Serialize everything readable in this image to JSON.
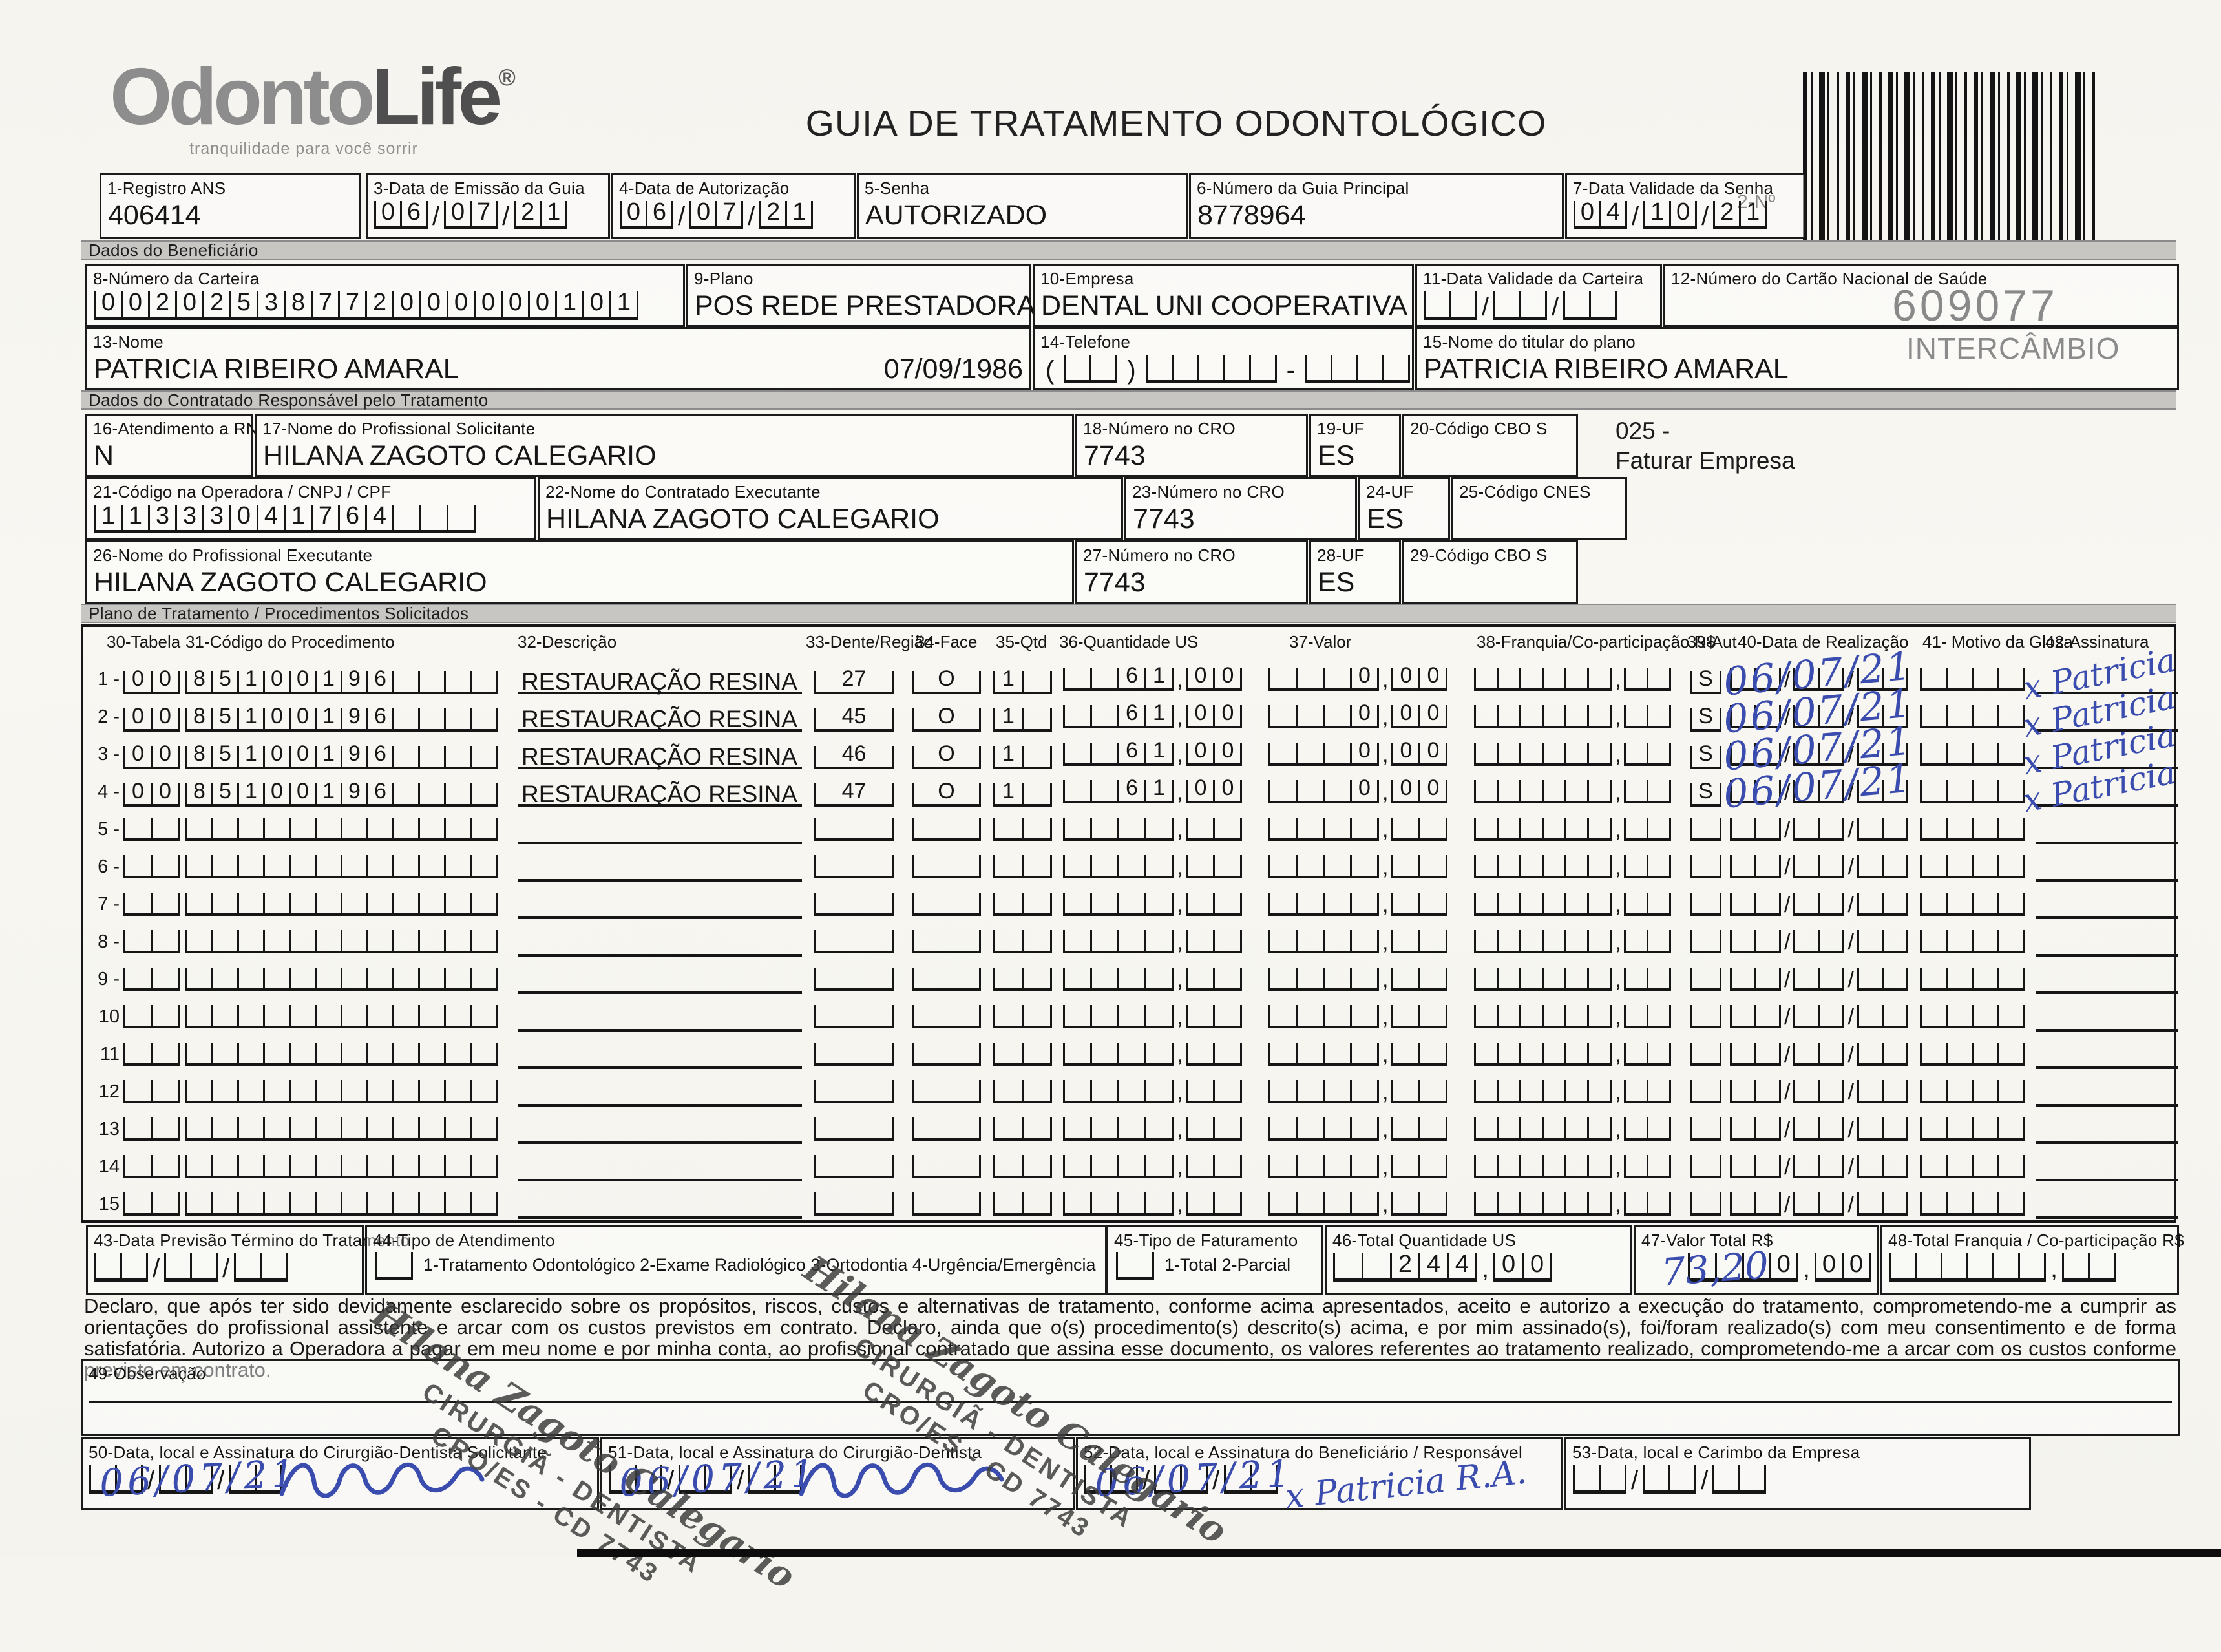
{
  "page": {
    "logo": {
      "odonto": "Odonto",
      "life": "Life",
      "reg": "®",
      "tagline": "tranquilidade para você sorrir"
    },
    "title": "GUIA DE TRATAMENTO ODONTOLÓGICO",
    "barcode_label": "2-Nº",
    "guide_number": "609077",
    "guide_type": "INTERCÂMBIO",
    "ink_color": "#3a4cae"
  },
  "header_fields": {
    "registro_ans": {
      "label": "1-Registro ANS",
      "value": "406414"
    },
    "emissao": {
      "label": "3-Data de Emissão da Guia",
      "value": "060721"
    },
    "autorizacao": {
      "label": "4-Data de Autorização",
      "value": "060721"
    },
    "senha": {
      "label": "5-Senha",
      "value": "AUTORIZADO"
    },
    "guia_principal": {
      "label": "6-Número da Guia Principal",
      "value": "8778964"
    },
    "validade_senha": {
      "label": "7-Data Validade da Senha",
      "value": "041021"
    }
  },
  "section_bars": {
    "beneficiario": "Dados do Beneficiário",
    "contratado": "Dados do Contratado Responsável pelo Tratamento",
    "plano": "Plano de Tratamento / Procedimentos Solicitados"
  },
  "beneficiario": {
    "carteira": {
      "label": "8-Número da Carteira",
      "value": "00202538772000000101"
    },
    "plano": {
      "label": "9-Plano",
      "value": "POS REDE PRESTADORA"
    },
    "empresa": {
      "label": "10-Empresa",
      "value": "DENTAL UNI  COOPERATIVA"
    },
    "validade_carteira": {
      "label": "11-Data Validade da Carteira",
      "value": "      "
    },
    "cartao_nacional": {
      "label": "12-Número do Cartão Nacional de Saúde",
      "value": ""
    },
    "nome": {
      "label": "13-Nome",
      "value": "PATRICIA RIBEIRO AMARAL",
      "nascimento": "07/09/1986"
    },
    "telefone": {
      "label": "14-Telefone",
      "open": "(",
      "close": ")",
      "dash": "-",
      "ddd": "  ",
      "parte1": "     ",
      "parte2": "    "
    },
    "titular": {
      "label": "15-Nome do titular do plano",
      "value": "PATRICIA RIBEIRO AMARAL"
    }
  },
  "contratado": {
    "rn": {
      "label": "16-Atendimento a RN",
      "value": "N"
    },
    "solicitante": {
      "label": "17-Nome do Profissional Solicitante",
      "value": "HILANA ZAGOTO CALEGARIO"
    },
    "cro_solicitante": {
      "label": "18-Número no CRO",
      "value": "7743"
    },
    "uf_solicitante": {
      "label": "19-UF",
      "value": "ES"
    },
    "cbo_s": {
      "label": "20-Código CBO S",
      "value": ""
    },
    "faturar_nota": {
      "line1": "025 -",
      "line2": "Faturar Empresa"
    },
    "codigo_operadora": {
      "label": "21-Código na Operadora / CNPJ / CPF",
      "value": "11333041764   "
    },
    "executante": {
      "label": "22-Nome do Contratado Executante",
      "value": "HILANA ZAGOTO CALEGARIO"
    },
    "cro_executante": {
      "label": "23-Número no CRO",
      "value": "7743"
    },
    "uf_executante": {
      "label": "24-UF",
      "value": "ES"
    },
    "cnes": {
      "label": "25-Código CNES",
      "value": ""
    },
    "prof_executante": {
      "label": "26-Nome do Profissional Executante",
      "value": "HILANA ZAGOTO CALEGARIO"
    },
    "cro_prof": {
      "label": "27-Número no CRO",
      "value": "7743"
    },
    "uf_prof": {
      "label": "28-UF",
      "value": "ES"
    },
    "cbo_prof": {
      "label": "29-Código CBO S",
      "value": ""
    }
  },
  "plan_table": {
    "headers": {
      "tabela": "30-Tabela",
      "codigo": "31-Código do Procedimento",
      "desc": "32-Descrição",
      "dente": "33-Dente/Região",
      "face": "34-Face",
      "qtd": "35-Qtd",
      "us": "36-Quantidade US",
      "valor": "37-Valor",
      "franquia": "38-Franquia/Co-participação R$",
      "aut": "39-Aut",
      "data": "40-Data de Realização",
      "glosa": "41- Motivo da Glosa",
      "assin": "42-Assinatura"
    },
    "rows": [
      {
        "label": "1 -",
        "tabela": "00",
        "codigo": "85100196    ",
        "desc": "RESTAURAÇÃO RESINA",
        "dente": "27",
        "face": "O",
        "qtd": "1 ",
        "us": "  6100",
        "valor": "   000",
        "franquia": "        ",
        "aut": "S",
        "data": "      ",
        "data_hw": "06/07/21",
        "glosa": "    ",
        "sig_hw": "x Patricia"
      },
      {
        "label": "2 -",
        "tabela": "00",
        "codigo": "85100196    ",
        "desc": "RESTAURAÇÃO RESINA",
        "dente": "45",
        "face": "O",
        "qtd": "1 ",
        "us": "  6100",
        "valor": "   000",
        "franquia": "        ",
        "aut": "S",
        "data": "      ",
        "data_hw": "06/07/21",
        "glosa": "    ",
        "sig_hw": "x Patricia"
      },
      {
        "label": "3 -",
        "tabela": "00",
        "codigo": "85100196    ",
        "desc": "RESTAURAÇÃO RESINA",
        "dente": "46",
        "face": "O",
        "qtd": "1 ",
        "us": "  6100",
        "valor": "   000",
        "franquia": "        ",
        "aut": "S",
        "data": "      ",
        "data_hw": "06/07/21",
        "glosa": "    ",
        "sig_hw": "x Patricia"
      },
      {
        "label": "4 -",
        "tabela": "00",
        "codigo": "85100196    ",
        "desc": "RESTAURAÇÃO RESINA",
        "dente": "47",
        "face": "O",
        "qtd": "1 ",
        "us": "  6100",
        "valor": "   000",
        "franquia": "        ",
        "aut": "S",
        "data": "      ",
        "data_hw": "06/07/21",
        "glosa": "    ",
        "sig_hw": "x Patricia"
      },
      {
        "label": "5 -",
        "tabela": "  ",
        "codigo": "            ",
        "desc": "",
        "dente": "",
        "face": "",
        "qtd": "  ",
        "us": "      ",
        "valor": "      ",
        "franquia": "        ",
        "aut": " ",
        "data": "      ",
        "data_hw": "",
        "glosa": "    ",
        "sig_hw": ""
      },
      {
        "label": "6 -",
        "tabela": "  ",
        "codigo": "            ",
        "desc": "",
        "dente": "",
        "face": "",
        "qtd": "  ",
        "us": "      ",
        "valor": "      ",
        "franquia": "        ",
        "aut": " ",
        "data": "      ",
        "data_hw": "",
        "glosa": "    ",
        "sig_hw": ""
      },
      {
        "label": "7 -",
        "tabela": "  ",
        "codigo": "            ",
        "desc": "",
        "dente": "",
        "face": "",
        "qtd": "  ",
        "us": "      ",
        "valor": "      ",
        "franquia": "        ",
        "aut": " ",
        "data": "      ",
        "data_hw": "",
        "glosa": "    ",
        "sig_hw": ""
      },
      {
        "label": "8 -",
        "tabela": "  ",
        "codigo": "            ",
        "desc": "",
        "dente": "",
        "face": "",
        "qtd": "  ",
        "us": "      ",
        "valor": "      ",
        "franquia": "        ",
        "aut": " ",
        "data": "      ",
        "data_hw": "",
        "glosa": "    ",
        "sig_hw": ""
      },
      {
        "label": "9 -",
        "tabela": "  ",
        "codigo": "            ",
        "desc": "",
        "dente": "",
        "face": "",
        "qtd": "  ",
        "us": "      ",
        "valor": "      ",
        "franquia": "        ",
        "aut": " ",
        "data": "      ",
        "data_hw": "",
        "glosa": "    ",
        "sig_hw": ""
      },
      {
        "label": "10",
        "tabela": "  ",
        "codigo": "            ",
        "desc": "",
        "dente": "",
        "face": "",
        "qtd": "  ",
        "us": "      ",
        "valor": "      ",
        "franquia": "        ",
        "aut": " ",
        "data": "      ",
        "data_hw": "",
        "glosa": "    ",
        "sig_hw": ""
      },
      {
        "label": "11",
        "tabela": "  ",
        "codigo": "            ",
        "desc": "",
        "dente": "",
        "face": "",
        "qtd": "  ",
        "us": "      ",
        "valor": "      ",
        "franquia": "        ",
        "aut": " ",
        "data": "      ",
        "data_hw": "",
        "glosa": "    ",
        "sig_hw": ""
      },
      {
        "label": "12",
        "tabela": "  ",
        "codigo": "            ",
        "desc": "",
        "dente": "",
        "face": "",
        "qtd": "  ",
        "us": "      ",
        "valor": "      ",
        "franquia": "        ",
        "aut": " ",
        "data": "      ",
        "data_hw": "",
        "glosa": "    ",
        "sig_hw": ""
      },
      {
        "label": "13",
        "tabela": "  ",
        "codigo": "            ",
        "desc": "",
        "dente": "",
        "face": "",
        "qtd": "  ",
        "us": "      ",
        "valor": "      ",
        "franquia": "        ",
        "aut": " ",
        "data": "      ",
        "data_hw": "",
        "glosa": "    ",
        "sig_hw": ""
      },
      {
        "label": "14",
        "tabela": "  ",
        "codigo": "            ",
        "desc": "",
        "dente": "",
        "face": "",
        "qtd": "  ",
        "us": "      ",
        "valor": "      ",
        "franquia": "        ",
        "aut": " ",
        "data": "      ",
        "data_hw": "",
        "glosa": "    ",
        "sig_hw": ""
      },
      {
        "label": "15",
        "tabela": "  ",
        "codigo": "            ",
        "desc": "",
        "dente": "",
        "face": "",
        "qtd": "  ",
        "us": "      ",
        "valor": "      ",
        "franquia": "        ",
        "aut": " ",
        "data": "      ",
        "data_hw": "",
        "glosa": "    ",
        "sig_hw": ""
      }
    ]
  },
  "footer_fields": {
    "previsao": {
      "label": "43-Data Previsão Término do Tratamento",
      "value": "      "
    },
    "tipo_atendimento": {
      "label": "44-Tipo de Atendimento",
      "checkbox": " ",
      "options": "1-Tratamento Odontológico  2-Exame Radiológico  3-Ortodontia  4-Urgência/Emergência"
    },
    "tipo_faturamento": {
      "label": "45-Tipo de Faturamento",
      "checkbox": " ",
      "options": "1-Total  2-Parcial"
    },
    "total_us": {
      "label": "46-Total Quantidade US",
      "value": "  24400"
    },
    "valor_total": {
      "label": "47-Valor Total R$",
      "value": "   000",
      "handwritten": "73,20"
    },
    "total_franquia": {
      "label": "48-Total Franquia / Co-participação R$",
      "value": "        "
    }
  },
  "declaration": "Declaro, que após ter sido devidamente esclarecido sobre os propósitos, riscos, custos e alternativas de tratamento, conforme acima apresentados, aceito e autorizo a execução do tratamento, comprometendo-me a cumprir as orientações do profissional assistente e arcar com os custos previstos em contrato. Declaro, ainda que o(s) procedimento(s) descrito(s) acima, e por mim assinado(s), foi/foram realizado(s) com meu consentimento e de forma satisfatória. Autorizo a Operadora a pagar em meu nome e por minha conta, ao profissional contratado que assina esse documento, os valores referentes ao tratamento realizado, comprometendo-me a arcar com os custos conforme previsto em contrato.",
  "observacao": {
    "label": "49-Observação"
  },
  "signature_boxes": {
    "s50": {
      "label": "50-Data, local e Assinatura do Cirurgião-Dentista Solicitante",
      "date_value": "      ",
      "date_hw": "06/07/21"
    },
    "s51": {
      "label": "51-Data, local e Assinatura do Cirurgião-Dentista",
      "date_value": "      ",
      "date_hw": "06/07/21"
    },
    "s52": {
      "label": "52-Data, local e Assinatura do Beneficiário / Responsável",
      "date_value": "      ",
      "date_hw": "06/07/21",
      "sig_hw": "x Patricia R.A."
    },
    "s53": {
      "label": "53-Data, local e Carimbo da Empresa",
      "date_value": "      "
    }
  },
  "stamp": {
    "line1": "Hilana Zagoto Calegario",
    "line2": "CIRURGIÃ - DENTISTA",
    "line3": "CRO/ES - CD 7743"
  }
}
